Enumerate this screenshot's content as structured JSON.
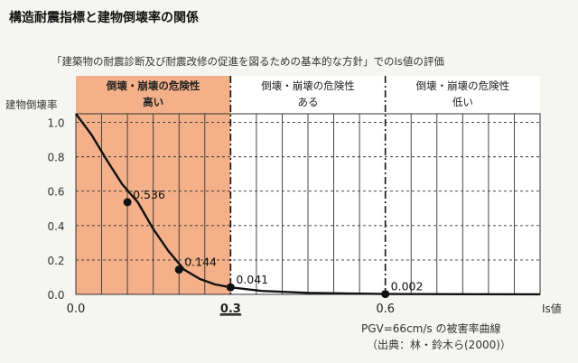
{
  "page": {
    "heading": "構造耐震指標と建物倒壊率の関係",
    "subheading": "「建築物の耐震診断及び耐震改修の促進を図るための基本的な方針」でのIs値の評価"
  },
  "chart_data": {
    "type": "line",
    "title": "構造耐震指標と建物倒壊率の関係",
    "subtitle": "「建築物の耐震診断及び耐震改修の促進を図るための基本的な方針」でのIs値の評価",
    "xlabel": "Is値",
    "ylabel": "建物倒壊率",
    "xlim": [
      0,
      0.9
    ],
    "ylim": [
      0,
      1.05
    ],
    "x_ticks": [
      "0.0",
      "0.3",
      "0.6"
    ],
    "y_ticks": [
      "0.0",
      "0.2",
      "0.4",
      "0.6",
      "0.8",
      "1.0"
    ],
    "grid": true,
    "series": [
      {
        "x": [
          0,
          0.03,
          0.06,
          0.09,
          0.12,
          0.15,
          0.18,
          0.21,
          0.24,
          0.27,
          0.3,
          0.36,
          0.45,
          0.6,
          0.75,
          0.9
        ],
        "values": [
          1.05,
          0.93,
          0.78,
          0.64,
          0.536,
          0.38,
          0.25,
          0.144,
          0.09,
          0.058,
          0.041,
          0.02,
          0.009,
          0.002,
          0.001,
          0.0005
        ],
        "color": "#111111"
      }
    ],
    "labeled_points": [
      {
        "x": 0.1,
        "y": 0.536,
        "label": "0.536"
      },
      {
        "x": 0.2,
        "y": 0.144,
        "label": "0.144"
      },
      {
        "x": 0.3,
        "y": 0.041,
        "label": "0.041"
      },
      {
        "x": 0.6,
        "y": 0.002,
        "label": "0.002"
      }
    ],
    "regions": [
      {
        "from": 0,
        "to": 0.3,
        "lines": [
          "倒壊・崩壊の危険性",
          "高い"
        ],
        "color": "#f3b089",
        "emphasis": true
      },
      {
        "from": 0.3,
        "to": 0.6,
        "lines": [
          "倒壊・崩壊の危険性",
          "ある"
        ],
        "color": "#ffffff"
      },
      {
        "from": 0.6,
        "to": 0.9,
        "lines": [
          "倒壊・崩壊の危険性",
          "低い"
        ],
        "color": "#ffffff"
      }
    ],
    "highlight_tick": "0.3",
    "notes": [
      "PGV=66cm/s の被害率曲線",
      "（出典：林・鈴木ら(2000)）"
    ]
  }
}
